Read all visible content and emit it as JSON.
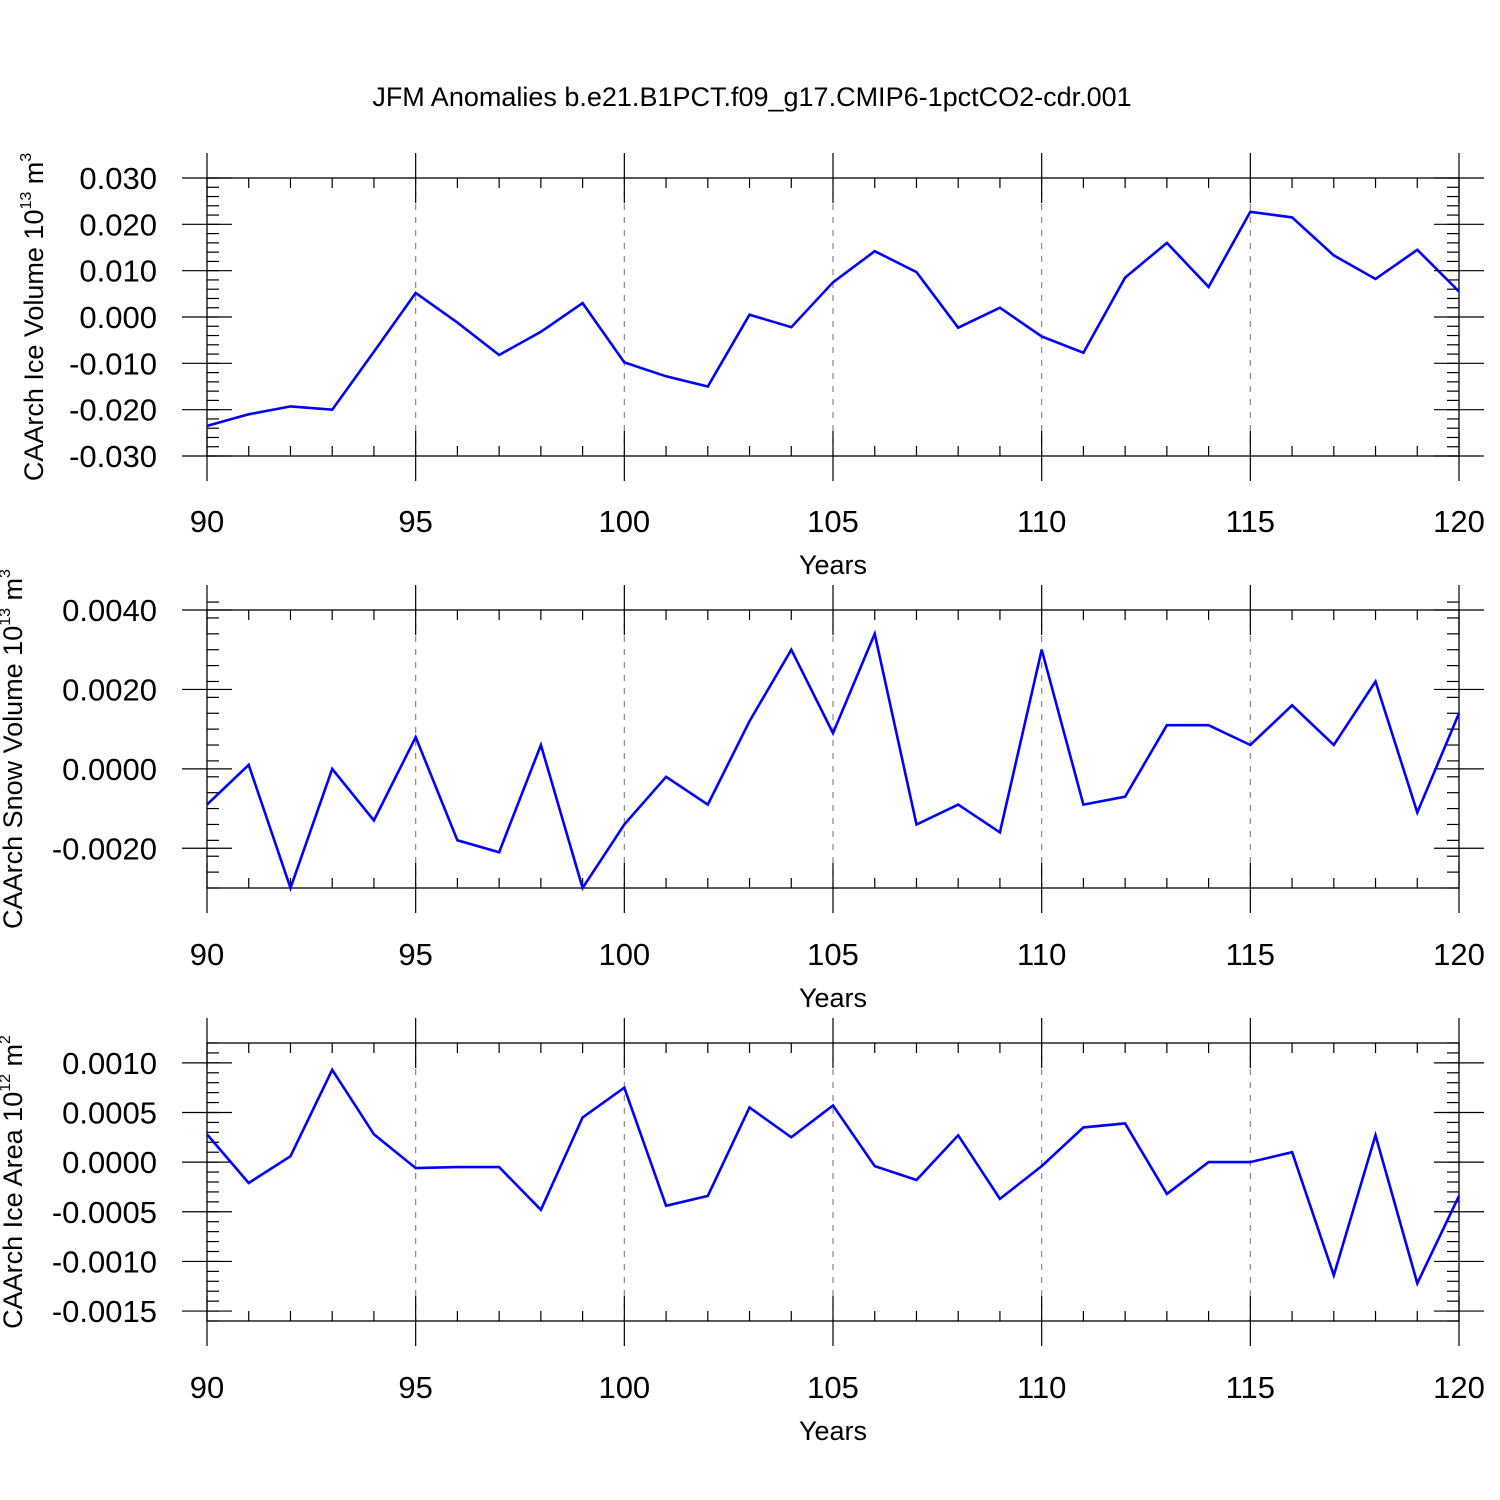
{
  "title": "JFM Anomalies b.e21.B1PCT.f09_g17.CMIP6-1pctCO2-cdr.001",
  "chart_data": [
    {
      "type": "line",
      "ylabel": {
        "prefix": "CAArch Ice Volume 10",
        "exp": "13",
        "unit": " m",
        "unit_exp": "3"
      },
      "xlabel": "Years",
      "xlim": [
        90,
        120
      ],
      "ylim": [
        -0.03,
        0.03
      ],
      "xticks": [
        90,
        95,
        100,
        105,
        110,
        115,
        120
      ],
      "xtick_labels": [
        "90",
        "95",
        "100",
        "105",
        "110",
        "115",
        "120"
      ],
      "yticks": [
        -0.03,
        -0.02,
        -0.01,
        0.0,
        0.01,
        0.02,
        0.03
      ],
      "ytick_labels": [
        "-0.030",
        "-0.020",
        "-0.010",
        "0.000",
        "0.010",
        "0.020",
        "0.030"
      ],
      "yminor_step": 0.002,
      "grid_x": true,
      "color": "#0000ff",
      "x": [
        90,
        91,
        92,
        93,
        94,
        95,
        96,
        97,
        98,
        99,
        100,
        101,
        102,
        103,
        104,
        105,
        106,
        107,
        108,
        109,
        110,
        111,
        112,
        113,
        114,
        115,
        116,
        117,
        118,
        119,
        120
      ],
      "values": [
        -0.0235,
        -0.021,
        -0.0193,
        -0.02,
        -0.0075,
        0.0052,
        -0.0012,
        -0.0082,
        -0.0032,
        0.003,
        -0.0098,
        -0.0128,
        -0.015,
        0.0005,
        -0.0022,
        0.0075,
        0.0142,
        0.0097,
        -0.0023,
        0.002,
        -0.0042,
        -0.0077,
        0.0085,
        0.016,
        0.0065,
        0.0227,
        0.0215,
        0.0133,
        0.0082,
        0.0145,
        0.0055
      ]
    },
    {
      "type": "line",
      "ylabel": {
        "prefix": "CAArch Snow Volume 10",
        "exp": "13",
        "unit": " m",
        "unit_exp": "3"
      },
      "xlabel": "Years",
      "xlim": [
        90,
        120
      ],
      "ylim": [
        -0.003,
        0.004
      ],
      "xticks": [
        90,
        95,
        100,
        105,
        110,
        115,
        120
      ],
      "xtick_labels": [
        "90",
        "95",
        "100",
        "105",
        "110",
        "115",
        "120"
      ],
      "yticks": [
        -0.002,
        0.0,
        0.002,
        0.004
      ],
      "ytick_labels": [
        "-0.0020",
        "0.0000",
        "0.0020",
        "0.0040"
      ],
      "yminor_step": 0.0004,
      "grid_x": true,
      "color": "#0000ff",
      "x": [
        90,
        91,
        92,
        93,
        94,
        95,
        96,
        97,
        98,
        99,
        100,
        101,
        102,
        103,
        104,
        105,
        106,
        107,
        108,
        109,
        110,
        111,
        112,
        113,
        114,
        115,
        116,
        117,
        118,
        119,
        120
      ],
      "values": [
        -0.0009,
        0.0001,
        -0.003,
        -0.0,
        -0.0013,
        0.0008,
        -0.0018,
        -0.0021,
        0.0006,
        -0.003,
        -0.0014,
        -0.0002,
        -0.0009,
        0.0012,
        0.003,
        0.0009,
        0.0034,
        -0.0014,
        -0.0009,
        -0.0016,
        0.003,
        -0.0009,
        -0.0007,
        0.0011,
        0.0011,
        0.0006,
        0.0016,
        0.0006,
        0.0022,
        -0.0011,
        0.0014
      ]
    },
    {
      "type": "line",
      "ylabel": {
        "prefix": "CAArch Ice Area 10",
        "exp": "12",
        "unit": " m",
        "unit_exp": "2"
      },
      "xlabel": "Years",
      "xlim": [
        90,
        120
      ],
      "ylim": [
        -0.0016,
        0.0012
      ],
      "xticks": [
        90,
        95,
        100,
        105,
        110,
        115,
        120
      ],
      "xtick_labels": [
        "90",
        "95",
        "100",
        "105",
        "110",
        "115",
        "120"
      ],
      "yticks": [
        -0.0015,
        -0.001,
        -0.0005,
        0.0,
        0.0005,
        0.001
      ],
      "ytick_labels": [
        "-0.0015",
        "-0.0010",
        "-0.0005",
        "0.0000",
        "0.0005",
        "0.0010"
      ],
      "yminor_step": 0.0001,
      "grid_x": true,
      "color": "#0000ff",
      "x": [
        90,
        91,
        92,
        93,
        94,
        95,
        96,
        97,
        98,
        99,
        100,
        101,
        102,
        103,
        104,
        105,
        106,
        107,
        108,
        109,
        110,
        111,
        112,
        113,
        114,
        115,
        116,
        117,
        118,
        119,
        120
      ],
      "values": [
        0.00028,
        -0.00021,
        6e-05,
        0.00093,
        0.00028,
        -6e-05,
        -5e-05,
        -5e-05,
        -0.00048,
        0.00045,
        0.00075,
        -0.00044,
        -0.00034,
        0.00055,
        0.00025,
        0.00057,
        -4e-05,
        -0.00018,
        0.00027,
        -0.00037,
        -4e-05,
        0.00035,
        0.00039,
        -0.00032,
        0.0,
        0.0,
        0.0001,
        -0.00114,
        0.00027,
        -0.00122,
        -0.00034
      ]
    }
  ]
}
